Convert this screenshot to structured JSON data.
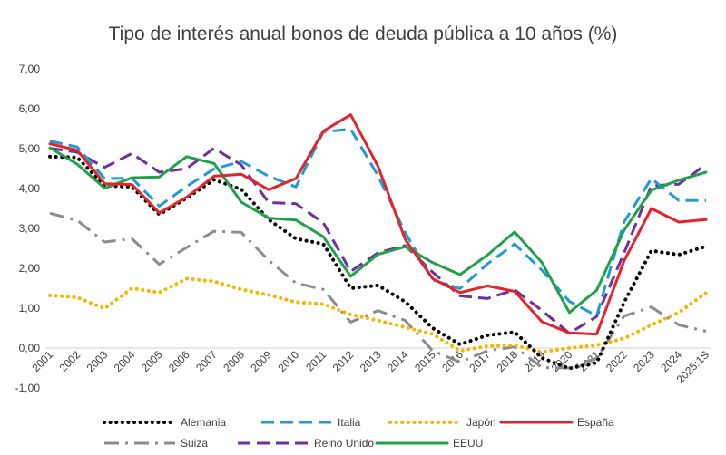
{
  "chart_data": {
    "type": "line",
    "title": "Tipo de interés anual bonos de deuda pública a 10 años (%)",
    "xlabel": "",
    "ylabel": "",
    "ylim": [
      -1,
      7
    ],
    "yticks": [
      "-1,00",
      "0,00",
      "1,00",
      "2,00",
      "3,00",
      "4,00",
      "5,00",
      "6,00",
      "7,00"
    ],
    "grid": false,
    "legend_position": "bottom",
    "categories": [
      "2001",
      "2002",
      "2003",
      "2004",
      "2005",
      "2006",
      "2007",
      "2008",
      "2009",
      "2010",
      "2011",
      "2012",
      "2013",
      "2014",
      "2015",
      "2016",
      "2017",
      "2018",
      "2019",
      "2020",
      "2021",
      "2022",
      "2023",
      "2024",
      "2025:1S"
    ],
    "series": [
      {
        "name": "Alemania",
        "color": "#000000",
        "style": "dotted",
        "values": [
          4.8,
          4.78,
          4.07,
          4.04,
          3.35,
          3.76,
          4.22,
          3.98,
          3.22,
          2.74,
          2.61,
          1.5,
          1.57,
          1.16,
          0.5,
          0.09,
          0.32,
          0.4,
          -0.25,
          -0.51,
          -0.37,
          1.14,
          2.44,
          2.34,
          2.55
        ]
      },
      {
        "name": "Italia",
        "color": "#1f9bd7",
        "style": "dashed",
        "values": [
          5.19,
          5.04,
          4.25,
          4.26,
          3.56,
          4.05,
          4.49,
          4.68,
          4.31,
          4.04,
          5.42,
          5.49,
          4.32,
          2.89,
          1.71,
          1.49,
          2.11,
          2.61,
          1.95,
          1.17,
          0.81,
          3.16,
          4.25,
          3.7,
          3.7
        ]
      },
      {
        "name": "Japón",
        "color": "#f5b800",
        "style": "dotted",
        "values": [
          1.32,
          1.27,
          0.99,
          1.5,
          1.39,
          1.74,
          1.67,
          1.47,
          1.33,
          1.15,
          1.1,
          0.84,
          0.69,
          0.52,
          0.35,
          -0.07,
          0.05,
          0.07,
          -0.1,
          0.0,
          0.07,
          0.24,
          0.58,
          0.89,
          1.38
        ]
      },
      {
        "name": "España",
        "color": "#e3242b",
        "style": "solid",
        "values": [
          5.12,
          4.96,
          4.12,
          4.1,
          3.39,
          3.78,
          4.31,
          4.36,
          3.97,
          4.25,
          5.44,
          5.85,
          4.56,
          2.72,
          1.74,
          1.39,
          1.56,
          1.42,
          0.66,
          0.38,
          0.35,
          2.18,
          3.5,
          3.16,
          3.22
        ]
      },
      {
        "name": "Suiza",
        "color": "#8c8c8c",
        "style": "dashdot",
        "values": [
          3.38,
          3.2,
          2.66,
          2.74,
          2.1,
          2.52,
          2.93,
          2.9,
          2.2,
          1.63,
          1.47,
          0.65,
          0.94,
          0.69,
          -0.07,
          -0.35,
          -0.07,
          0.03,
          -0.49,
          -0.5,
          -0.25,
          0.8,
          1.03,
          0.58,
          0.42
        ]
      },
      {
        "name": "Reino Unido",
        "color": "#7030a0",
        "style": "dashed",
        "values": [
          5.01,
          4.91,
          4.53,
          4.88,
          4.41,
          4.5,
          5.01,
          4.59,
          3.65,
          3.62,
          3.14,
          1.92,
          2.39,
          2.57,
          1.9,
          1.31,
          1.24,
          1.46,
          0.94,
          0.37,
          0.79,
          2.38,
          4.07,
          4.11,
          4.6
        ]
      },
      {
        "name": "EEUU",
        "color": "#1fa24a",
        "style": "solid",
        "values": [
          5.02,
          4.61,
          4.01,
          4.27,
          4.29,
          4.8,
          4.63,
          3.66,
          3.26,
          3.21,
          2.79,
          1.8,
          2.35,
          2.54,
          2.14,
          1.84,
          2.33,
          2.91,
          2.14,
          0.89,
          1.45,
          2.95,
          3.96,
          4.21,
          4.41
        ]
      }
    ]
  }
}
